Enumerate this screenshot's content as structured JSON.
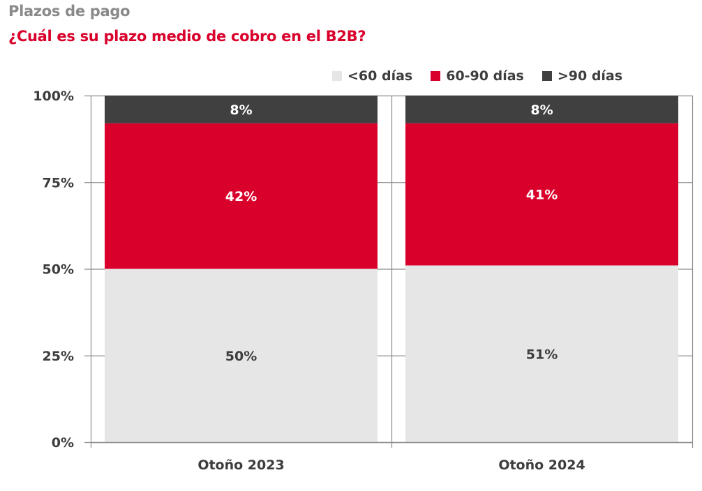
{
  "chart_data": {
    "type": "bar",
    "stacked": true,
    "supertitle": "Plazos de pago",
    "title": "¿Cuál es su plazo medio de cobro en el B2B?",
    "xlabel": "",
    "ylabel": "",
    "categories": [
      "Otoño 2023",
      "Otoño 2024"
    ],
    "series": [
      {
        "name": "<60 días",
        "values": [
          50,
          51
        ],
        "labels": [
          "50%",
          "51%"
        ],
        "color": "#e6e6e6",
        "label_color": "#3d3d3d"
      },
      {
        "name": "60-90 días",
        "values": [
          42,
          41
        ],
        "labels": [
          "42%",
          "41%"
        ],
        "color": "#d9002b",
        "label_color": "#ffffff"
      },
      {
        "name": ">90 días",
        "values": [
          8,
          8
        ],
        "labels": [
          "8%",
          "8%"
        ],
        "color": "#404040",
        "label_color": "#ffffff"
      }
    ],
    "ylim": [
      0,
      100
    ],
    "yticks": [
      0,
      25,
      50,
      75,
      100
    ],
    "ytick_labels": [
      "0%",
      "25%",
      "50%",
      "75%",
      "100%"
    ],
    "grid": true,
    "legend_position": "top-right"
  },
  "colors": {
    "title": "#d9002b",
    "supertitle": "#8a8a8a",
    "axis": "#8c8c8c",
    "text": "#3d3d3d"
  }
}
